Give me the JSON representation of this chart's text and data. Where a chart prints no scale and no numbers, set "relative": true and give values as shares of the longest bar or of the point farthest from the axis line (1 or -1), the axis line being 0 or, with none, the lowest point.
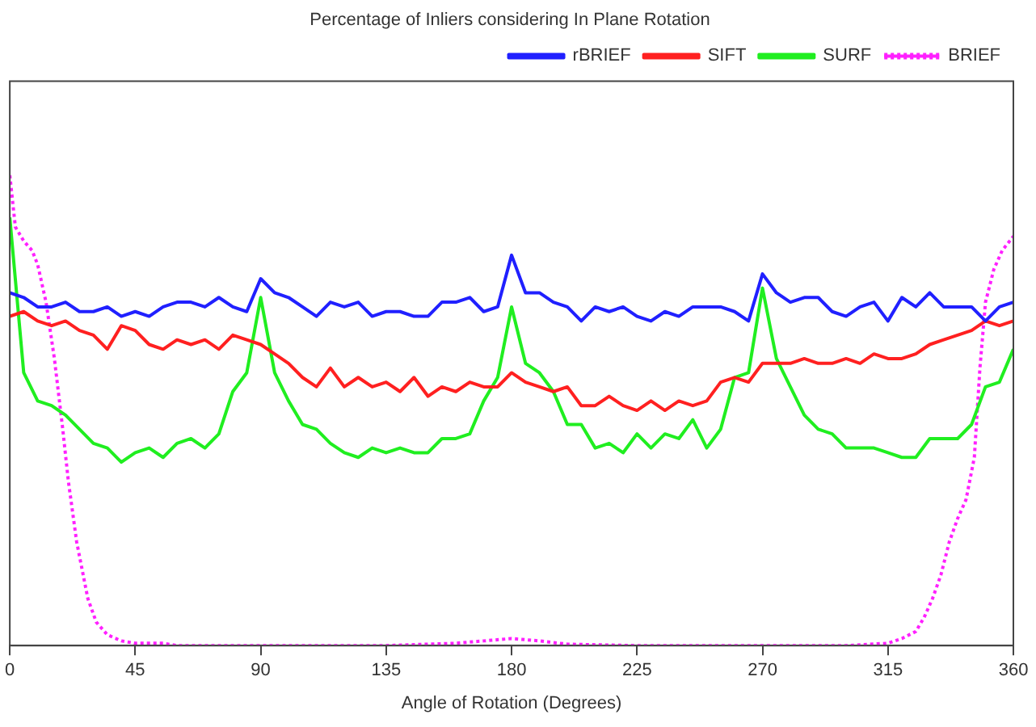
{
  "chart_data": {
    "type": "line",
    "title": "Percentage of Inliers considering In Plane Rotation",
    "xlabel": "Angle of Rotation (Degrees)",
    "relative": true,
    "x": [
      0,
      5,
      10,
      15,
      20,
      25,
      30,
      35,
      40,
      45,
      50,
      55,
      60,
      65,
      70,
      75,
      80,
      85,
      90,
      95,
      100,
      105,
      110,
      115,
      120,
      125,
      130,
      135,
      140,
      145,
      150,
      155,
      160,
      165,
      170,
      175,
      180,
      185,
      190,
      195,
      200,
      205,
      210,
      215,
      220,
      225,
      230,
      235,
      240,
      245,
      250,
      255,
      260,
      265,
      270,
      275,
      280,
      285,
      290,
      295,
      300,
      305,
      310,
      315,
      320,
      325,
      330,
      335,
      340,
      345,
      350,
      355,
      360
    ],
    "xlim": [
      0,
      360
    ],
    "xticks": [
      0,
      45,
      90,
      135,
      180,
      225,
      270,
      315,
      360
    ],
    "grid": false,
    "legend": "top right",
    "marker": "none",
    "series": [
      {
        "name": "rBRIEF",
        "color": "#2020ff",
        "line_style": "solid",
        "values": [
          0.75,
          0.74,
          0.72,
          0.72,
          0.73,
          0.71,
          0.71,
          0.72,
          0.7,
          0.71,
          0.7,
          0.72,
          0.73,
          0.73,
          0.72,
          0.74,
          0.72,
          0.71,
          0.78,
          0.75,
          0.74,
          0.72,
          0.7,
          0.73,
          0.72,
          0.73,
          0.7,
          0.71,
          0.71,
          0.7,
          0.7,
          0.73,
          0.73,
          0.74,
          0.71,
          0.72,
          0.83,
          0.75,
          0.75,
          0.73,
          0.72,
          0.69,
          0.72,
          0.71,
          0.72,
          0.7,
          0.69,
          0.71,
          0.7,
          0.72,
          0.72,
          0.72,
          0.71,
          0.69,
          0.79,
          0.75,
          0.73,
          0.74,
          0.74,
          0.71,
          0.7,
          0.72,
          0.73,
          0.69,
          0.74,
          0.72,
          0.75,
          0.72,
          0.72,
          0.72,
          0.69,
          0.72,
          0.73
        ]
      },
      {
        "name": "SIFT",
        "color": "#ff2020",
        "line_style": "solid",
        "values": [
          0.7,
          0.71,
          0.69,
          0.68,
          0.69,
          0.67,
          0.66,
          0.63,
          0.68,
          0.67,
          0.64,
          0.63,
          0.65,
          0.64,
          0.65,
          0.63,
          0.66,
          0.65,
          0.64,
          0.62,
          0.6,
          0.57,
          0.55,
          0.59,
          0.55,
          0.57,
          0.55,
          0.56,
          0.54,
          0.57,
          0.53,
          0.55,
          0.54,
          0.56,
          0.55,
          0.55,
          0.58,
          0.56,
          0.55,
          0.54,
          0.55,
          0.51,
          0.51,
          0.53,
          0.51,
          0.5,
          0.52,
          0.5,
          0.52,
          0.51,
          0.52,
          0.56,
          0.57,
          0.56,
          0.6,
          0.6,
          0.6,
          0.61,
          0.6,
          0.6,
          0.61,
          0.6,
          0.62,
          0.61,
          0.61,
          0.62,
          0.64,
          0.65,
          0.66,
          0.67,
          0.69,
          0.68,
          0.69
        ]
      },
      {
        "name": "SURF",
        "color": "#20ee20",
        "line_style": "solid",
        "values": [
          0.91,
          0.58,
          0.52,
          0.51,
          0.49,
          0.46,
          0.43,
          0.42,
          0.39,
          0.41,
          0.42,
          0.4,
          0.43,
          0.44,
          0.42,
          0.45,
          0.54,
          0.58,
          0.74,
          0.58,
          0.52,
          0.47,
          0.46,
          0.43,
          0.41,
          0.4,
          0.42,
          0.41,
          0.42,
          0.41,
          0.41,
          0.44,
          0.44,
          0.45,
          0.52,
          0.57,
          0.72,
          0.6,
          0.58,
          0.54,
          0.47,
          0.47,
          0.42,
          0.43,
          0.41,
          0.45,
          0.42,
          0.45,
          0.44,
          0.48,
          0.42,
          0.46,
          0.57,
          0.58,
          0.76,
          0.61,
          0.55,
          0.49,
          0.46,
          0.45,
          0.42,
          0.42,
          0.42,
          0.41,
          0.4,
          0.4,
          0.44,
          0.44,
          0.44,
          0.47,
          0.55,
          0.56,
          0.63
        ]
      },
      {
        "name": "BRIEF",
        "color": "#ff20ff",
        "line_style": "dotted",
        "x": [
          0,
          2,
          5,
          8,
          10,
          13,
          16,
          19,
          21,
          24,
          28,
          31,
          35,
          40,
          45,
          55,
          60,
          90,
          135,
          160,
          170,
          180,
          190,
          200,
          225,
          270,
          300,
          315,
          320,
          325,
          328,
          331,
          334,
          337,
          340,
          343,
          346,
          348,
          350,
          353,
          356,
          360
        ],
        "values": [
          1,
          0.89,
          0.86,
          0.84,
          0.81,
          0.73,
          0.61,
          0.46,
          0.35,
          0.22,
          0.1,
          0.05,
          0.023,
          0.01,
          0.005,
          0.005,
          0,
          0,
          0,
          0.005,
          0.01,
          0.015,
          0.01,
          0.003,
          0,
          0,
          0,
          0.005,
          0.015,
          0.03,
          0.06,
          0.1,
          0.15,
          0.22,
          0.27,
          0.31,
          0.4,
          0.59,
          0.73,
          0.8,
          0.84,
          0.87
        ]
      }
    ]
  }
}
